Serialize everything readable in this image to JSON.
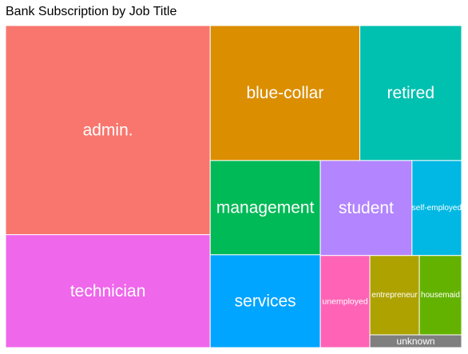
{
  "chart_data": {
    "type": "treemap",
    "title": "Bank Subscription by Job Title",
    "items": [
      {
        "label": "admin.",
        "value": 1352,
        "color": "#F8766D"
      },
      {
        "label": "technician",
        "value": 730,
        "color": "#EF67EB"
      },
      {
        "label": "blue-collar",
        "value": 638,
        "color": "#DB8E00"
      },
      {
        "label": "retired",
        "value": 434,
        "color": "#00C0AF"
      },
      {
        "label": "management",
        "value": 328,
        "color": "#00BA57"
      },
      {
        "label": "services",
        "value": 323,
        "color": "#00A5FF"
      },
      {
        "label": "student",
        "value": 275,
        "color": "#B385FF"
      },
      {
        "label": "self-employed",
        "value": 149,
        "color": "#00B8E3"
      },
      {
        "label": "unemployed",
        "value": 144,
        "color": "#FF63B6"
      },
      {
        "label": "entrepreneur",
        "value": 124,
        "color": "#AEA200"
      },
      {
        "label": "housemaid",
        "value": 106,
        "color": "#64B200"
      },
      {
        "label": "unknown",
        "value": 37,
        "color": "#7F7F7F"
      }
    ]
  }
}
